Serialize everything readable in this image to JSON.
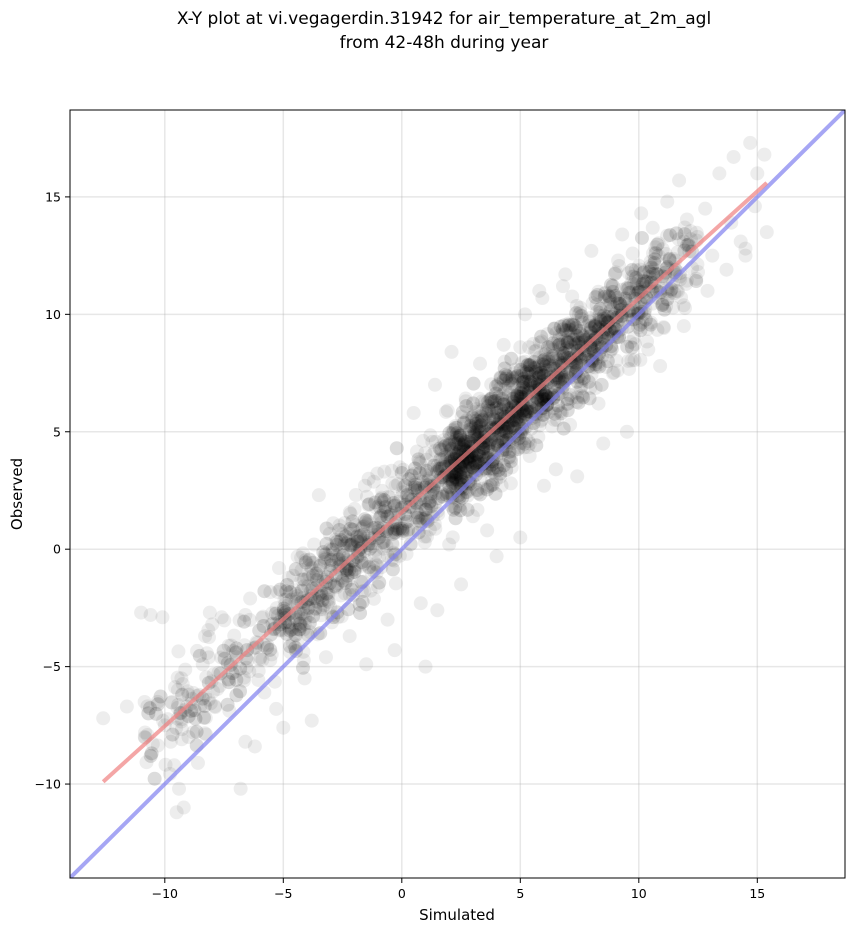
{
  "chart_data": {
    "type": "scatter",
    "title_lines": [
      "X-Y plot at vi.vegagerdin.31942 for air_temperature_at_2m_agl",
      "from 42-48h during year"
    ],
    "xlabel": "Simulated",
    "ylabel": "Observed",
    "xlim": [
      -14,
      18.7
    ],
    "ylim": [
      -14,
      18.7
    ],
    "xticks": [
      -10,
      -5,
      0,
      5,
      10,
      15
    ],
    "yticks": [
      -10,
      -5,
      0,
      5,
      10,
      15
    ],
    "xtick_labels": [
      "−10",
      "−5",
      "0",
      "5",
      "10",
      "15"
    ],
    "ytick_labels": [
      "−10",
      "−5",
      "0",
      "5",
      "10",
      "15"
    ],
    "grid": true,
    "point_color": "#000000",
    "point_alpha": 0.07,
    "fit_line": {
      "color": "#f08080",
      "x": [
        -12.6,
        15.4
      ],
      "y": [
        -9.9,
        15.6
      ]
    },
    "identity_line": {
      "color": "#8080f0",
      "x": [
        -14,
        18.7
      ],
      "y": [
        -14,
        18.7
      ]
    },
    "points": [
      [
        -12.6,
        -7.2
      ],
      [
        -11.6,
        -6.7
      ],
      [
        -11.0,
        -2.7
      ],
      [
        -10.6,
        -2.8
      ],
      [
        -10.1,
        -2.9
      ],
      [
        -10.3,
        -6.5
      ],
      [
        -10.0,
        -7.5
      ],
      [
        -9.6,
        -9.2
      ],
      [
        -9.5,
        -11.2
      ],
      [
        -9.2,
        -11.0
      ],
      [
        -9.4,
        -10.2
      ],
      [
        -9.0,
        -8.0
      ],
      [
        -8.8,
        -7.8
      ],
      [
        -8.6,
        -9.1
      ],
      [
        -9.3,
        -5.5
      ],
      [
        -9.0,
        -6.2
      ],
      [
        -8.4,
        -4.9
      ],
      [
        -8.3,
        -3.7
      ],
      [
        -8.0,
        -3.2
      ],
      [
        -8.1,
        -2.7
      ],
      [
        -7.6,
        -2.9
      ],
      [
        -7.2,
        -4.1
      ],
      [
        -7.0,
        -5.2
      ],
      [
        -6.8,
        -10.2
      ],
      [
        -6.6,
        -8.2
      ],
      [
        -6.2,
        -8.4
      ],
      [
        -6.6,
        -2.8
      ],
      [
        -6.4,
        -2.1
      ],
      [
        -6.0,
        -4.7
      ],
      [
        -5.8,
        -6.1
      ],
      [
        -5.5,
        -3.2
      ],
      [
        -5.3,
        -6.8
      ],
      [
        -5.0,
        -7.6
      ],
      [
        -4.6,
        -4.0
      ],
      [
        -4.4,
        -2.0
      ],
      [
        -3.8,
        -7.3
      ],
      [
        -4.1,
        -5.5
      ],
      [
        -3.4,
        -1.8
      ],
      [
        -3.2,
        -4.6
      ],
      [
        -3.5,
        2.3
      ],
      [
        -2.7,
        -2.9
      ],
      [
        -2.2,
        -3.7
      ],
      [
        -1.8,
        -0.2
      ],
      [
        -1.5,
        -4.9
      ],
      [
        -1.4,
        3.0
      ],
      [
        -1.0,
        -1.6
      ],
      [
        -0.8,
        2.0
      ],
      [
        -0.6,
        -3.0
      ],
      [
        -0.3,
        -4.3
      ],
      [
        -0.4,
        2.8
      ],
      [
        0.2,
        -0.2
      ],
      [
        0.5,
        5.8
      ],
      [
        0.8,
        -2.3
      ],
      [
        1.0,
        -5.0
      ],
      [
        1.2,
        2.2
      ],
      [
        1.5,
        -2.6
      ],
      [
        1.4,
        7.0
      ],
      [
        1.8,
        4.5
      ],
      [
        2.0,
        0.2
      ],
      [
        2.2,
        5.1
      ],
      [
        2.5,
        -1.5
      ],
      [
        2.7,
        6.3
      ],
      [
        3.0,
        1.4
      ],
      [
        3.3,
        7.9
      ],
      [
        3.6,
        0.8
      ],
      [
        3.8,
        4.9
      ],
      [
        4.0,
        -0.3
      ],
      [
        4.3,
        8.7
      ],
      [
        4.6,
        2.8
      ],
      [
        4.8,
        6.0
      ],
      [
        5.0,
        0.5
      ],
      [
        5.2,
        10.0
      ],
      [
        5.4,
        4.5
      ],
      [
        5.8,
        11.0
      ],
      [
        6.0,
        2.7
      ],
      [
        6.2,
        8.0
      ],
      [
        6.5,
        3.4
      ],
      [
        6.8,
        11.2
      ],
      [
        7.1,
        5.3
      ],
      [
        7.4,
        3.1
      ],
      [
        7.6,
        9.8
      ],
      [
        8.0,
        12.7
      ],
      [
        8.3,
        6.2
      ],
      [
        8.5,
        4.5
      ],
      [
        8.8,
        10.5
      ],
      [
        9.1,
        7.6
      ],
      [
        9.3,
        13.4
      ],
      [
        9.5,
        5.0
      ],
      [
        9.8,
        11.3
      ],
      [
        10.1,
        14.3
      ],
      [
        10.4,
        8.5
      ],
      [
        10.6,
        12.6
      ],
      [
        10.9,
        7.8
      ],
      [
        11.2,
        14.8
      ],
      [
        11.5,
        10.9
      ],
      [
        11.7,
        15.7
      ],
      [
        11.9,
        9.5
      ],
      [
        12.2,
        13.2
      ],
      [
        12.5,
        11.8
      ],
      [
        12.8,
        14.5
      ],
      [
        13.1,
        12.5
      ],
      [
        13.4,
        16.0
      ],
      [
        13.7,
        11.9
      ],
      [
        14.0,
        16.7
      ],
      [
        14.3,
        13.1
      ],
      [
        14.5,
        12.8
      ],
      [
        14.7,
        17.3
      ],
      [
        14.9,
        14.6
      ],
      [
        15.3,
        16.8
      ],
      [
        15.4,
        13.5
      ],
      [
        15.0,
        16.0
      ],
      [
        14.5,
        12.5
      ],
      [
        13.9,
        13.9
      ],
      [
        12.9,
        11.0
      ],
      [
        11.9,
        13.1
      ],
      [
        6.9,
        11.7
      ],
      [
        7.1,
        7.5
      ],
      [
        5.0,
        8.6
      ],
      [
        3.0,
        4.0
      ],
      [
        2.1,
        8.4
      ]
    ]
  }
}
